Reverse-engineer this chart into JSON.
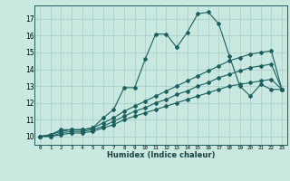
{
  "title": "",
  "xlabel": "Humidex (Indice chaleur)",
  "bg_color": "#c8e8e0",
  "grid_color": "#a8ccc8",
  "line_color": "#1a6060",
  "xlim": [
    -0.5,
    23.5
  ],
  "ylim": [
    9.5,
    17.8
  ],
  "yticks": [
    10,
    11,
    12,
    13,
    14,
    15,
    16,
    17
  ],
  "xticks": [
    0,
    1,
    2,
    3,
    4,
    5,
    6,
    7,
    8,
    9,
    10,
    11,
    12,
    13,
    14,
    15,
    16,
    17,
    18,
    19,
    20,
    21,
    22,
    23
  ],
  "line1_x": [
    0,
    1,
    2,
    3,
    4,
    5,
    6,
    7,
    8,
    9,
    10,
    11,
    12,
    13,
    14,
    15,
    16,
    17,
    18,
    19,
    20,
    21,
    22,
    23
  ],
  "line1_y": [
    10.0,
    10.1,
    10.4,
    10.4,
    10.4,
    10.5,
    11.1,
    11.6,
    12.9,
    12.9,
    14.6,
    16.1,
    16.1,
    15.3,
    16.2,
    17.3,
    17.4,
    16.7,
    14.8,
    13.0,
    12.4,
    13.1,
    12.8,
    12.8
  ],
  "line2_x": [
    0,
    1,
    2,
    3,
    4,
    5,
    6,
    7,
    8,
    9,
    10,
    11,
    12,
    13,
    14,
    15,
    16,
    17,
    18,
    19,
    20,
    21,
    22,
    23
  ],
  "line2_y": [
    10.0,
    10.1,
    10.3,
    10.4,
    10.4,
    10.5,
    10.8,
    11.1,
    11.5,
    11.8,
    12.1,
    12.4,
    12.7,
    13.0,
    13.3,
    13.6,
    13.9,
    14.2,
    14.5,
    14.7,
    14.9,
    15.0,
    15.1,
    12.8
  ],
  "line3_x": [
    0,
    1,
    2,
    3,
    4,
    5,
    6,
    7,
    8,
    9,
    10,
    11,
    12,
    13,
    14,
    15,
    16,
    17,
    18,
    19,
    20,
    21,
    22,
    23
  ],
  "line3_y": [
    10.0,
    10.0,
    10.2,
    10.3,
    10.3,
    10.4,
    10.6,
    10.9,
    11.2,
    11.5,
    11.7,
    12.0,
    12.2,
    12.5,
    12.7,
    13.0,
    13.2,
    13.5,
    13.7,
    13.9,
    14.1,
    14.2,
    14.3,
    12.8
  ],
  "line4_x": [
    0,
    1,
    2,
    3,
    4,
    5,
    6,
    7,
    8,
    9,
    10,
    11,
    12,
    13,
    14,
    15,
    16,
    17,
    18,
    19,
    20,
    21,
    22,
    23
  ],
  "line4_y": [
    10.0,
    10.0,
    10.1,
    10.2,
    10.2,
    10.3,
    10.5,
    10.7,
    11.0,
    11.2,
    11.4,
    11.6,
    11.8,
    12.0,
    12.2,
    12.4,
    12.6,
    12.8,
    13.0,
    13.1,
    13.2,
    13.3,
    13.4,
    12.8
  ]
}
